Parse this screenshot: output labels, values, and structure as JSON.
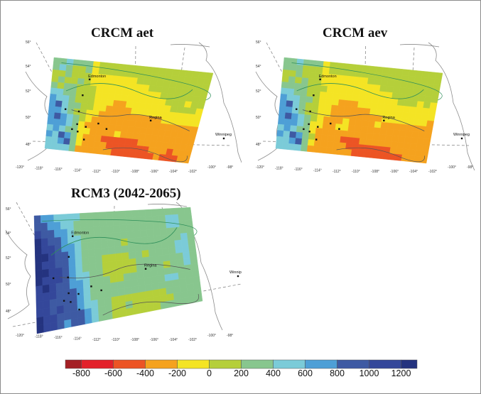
{
  "chart_data": {
    "type": "heatmap",
    "colorbar": {
      "orientation": "horizontal",
      "placement": "bottom",
      "boundaries": [
        -900,
        -800,
        -600,
        -400,
        -200,
        0,
        200,
        400,
        600,
        800,
        1000,
        1200,
        1300
      ],
      "tick_labels": [
        "-800",
        "-600",
        "-400",
        "-200",
        "0",
        "200",
        "400",
        "600",
        "800",
        "1000",
        "1200"
      ],
      "colors": [
        "#a41f24",
        "#e3202a",
        "#ec5424",
        "#f5a21e",
        "#f4e424",
        "#b5cf3a",
        "#88c68e",
        "#7bcbd8",
        "#4e9fd6",
        "#3e5aa3",
        "#34479a",
        "#24337f"
      ]
    },
    "lat_ticks": [
      "56°",
      "54°",
      "52°",
      "50°",
      "48°"
    ],
    "lon_ticks": [
      "-120°",
      "-118°",
      "-116°",
      "-114°",
      "-112°",
      "-110°",
      "-108°",
      "-106°",
      "-104°",
      "-102°",
      "-100°",
      "-98°"
    ],
    "place_labels": [
      "Edmonton",
      "Regina",
      "Winnipeg"
    ],
    "panels": [
      {
        "title": "CRCM aet",
        "note": "values are colorbar class indices (0=-900..-800 ... 11=1200..1300), west→east columns, north→south rows",
        "grid": [
          [
            6,
            6,
            7,
            6,
            6,
            6,
            4,
            5,
            5,
            5,
            5,
            5,
            5,
            5,
            5,
            5,
            5,
            5,
            5,
            5,
            5,
            5,
            5,
            5
          ],
          [
            6,
            7,
            6,
            5,
            5,
            6,
            4,
            5,
            5,
            5,
            5,
            5,
            5,
            5,
            5,
            5,
            5,
            5,
            5,
            5,
            5,
            5,
            5,
            5
          ],
          [
            5,
            5,
            6,
            5,
            5,
            5,
            4,
            4,
            4,
            4,
            4,
            4,
            4,
            5,
            5,
            5,
            5,
            5,
            5,
            5,
            5,
            5,
            5,
            5
          ],
          [
            5,
            6,
            5,
            5,
            6,
            5,
            4,
            4,
            4,
            4,
            4,
            4,
            4,
            4,
            4,
            5,
            5,
            5,
            5,
            5,
            5,
            5,
            5,
            5
          ],
          [
            6,
            5,
            6,
            6,
            5,
            5,
            5,
            4,
            4,
            4,
            4,
            4,
            4,
            4,
            4,
            4,
            4,
            5,
            5,
            5,
            5,
            5,
            5,
            5
          ],
          [
            7,
            7,
            6,
            6,
            5,
            5,
            5,
            4,
            4,
            4,
            4,
            4,
            4,
            4,
            4,
            4,
            4,
            4,
            5,
            5,
            5,
            4,
            5,
            5
          ],
          [
            8,
            7,
            7,
            6,
            5,
            5,
            5,
            4,
            4,
            4,
            3,
            3,
            4,
            4,
            4,
            4,
            4,
            4,
            4,
            5,
            5,
            5,
            5,
            4
          ],
          [
            8,
            9,
            7,
            6,
            6,
            5,
            5,
            4,
            4,
            3,
            3,
            3,
            3,
            4,
            4,
            4,
            4,
            4,
            4,
            4,
            4,
            4,
            4,
            4
          ],
          [
            8,
            8,
            7,
            6,
            5,
            5,
            4,
            4,
            3,
            3,
            3,
            3,
            3,
            3,
            3,
            3,
            3,
            3,
            4,
            4,
            4,
            4,
            4,
            4
          ],
          [
            8,
            9,
            8,
            7,
            6,
            5,
            4,
            3,
            3,
            3,
            3,
            3,
            3,
            3,
            3,
            3,
            3,
            3,
            3,
            3,
            3,
            3,
            3,
            3
          ],
          [
            8,
            8,
            8,
            7,
            6,
            4,
            3,
            3,
            3,
            3,
            3,
            3,
            3,
            3,
            3,
            3,
            3,
            3,
            3,
            3,
            3,
            3,
            3,
            3
          ],
          [
            7,
            8,
            7,
            6,
            6,
            4,
            4,
            3,
            3,
            3,
            3,
            4,
            3,
            3,
            3,
            3,
            3,
            3,
            3,
            3,
            3,
            3,
            3,
            3
          ],
          [
            8,
            7,
            9,
            8,
            6,
            4,
            3,
            3,
            3,
            2,
            2,
            2,
            2,
            2,
            2,
            3,
            3,
            3,
            3,
            3,
            3,
            3,
            3,
            3
          ],
          [
            7,
            7,
            8,
            9,
            6,
            4,
            3,
            3,
            3,
            3,
            2,
            2,
            2,
            2,
            2,
            2,
            2,
            3,
            3,
            3,
            2,
            3,
            3,
            3
          ],
          [
            7,
            7,
            7,
            7,
            6,
            3,
            3,
            3,
            3,
            3,
            3,
            2,
            2,
            2,
            2,
            2,
            2,
            2,
            3,
            2,
            2,
            2,
            3,
            3
          ]
        ]
      },
      {
        "title": "CRCM aev",
        "grid": [
          [
            6,
            6,
            7,
            6,
            6,
            6,
            4,
            5,
            5,
            5,
            5,
            5,
            5,
            5,
            5,
            5,
            5,
            5,
            5,
            5,
            5,
            5,
            5,
            5
          ],
          [
            6,
            6,
            6,
            5,
            5,
            5,
            4,
            5,
            5,
            5,
            5,
            5,
            5,
            5,
            5,
            5,
            5,
            5,
            5,
            5,
            5,
            5,
            5,
            5
          ],
          [
            5,
            5,
            6,
            5,
            5,
            5,
            4,
            4,
            4,
            4,
            4,
            4,
            4,
            5,
            5,
            5,
            5,
            5,
            5,
            5,
            5,
            5,
            5,
            5
          ],
          [
            5,
            6,
            5,
            6,
            5,
            5,
            4,
            4,
            4,
            4,
            4,
            4,
            4,
            4,
            4,
            5,
            5,
            5,
            5,
            5,
            5,
            5,
            5,
            5
          ],
          [
            6,
            6,
            6,
            6,
            5,
            5,
            5,
            4,
            4,
            4,
            4,
            4,
            4,
            4,
            4,
            4,
            4,
            5,
            5,
            5,
            5,
            5,
            5,
            5
          ],
          [
            7,
            7,
            6,
            6,
            5,
            5,
            4,
            4,
            4,
            4,
            4,
            4,
            4,
            4,
            4,
            4,
            4,
            4,
            5,
            5,
            5,
            4,
            5,
            4
          ],
          [
            8,
            7,
            7,
            6,
            6,
            5,
            4,
            4,
            4,
            3,
            3,
            3,
            4,
            4,
            4,
            4,
            4,
            4,
            4,
            4,
            4,
            4,
            4,
            4
          ],
          [
            8,
            9,
            7,
            6,
            5,
            5,
            4,
            4,
            3,
            3,
            3,
            3,
            3,
            3,
            4,
            4,
            4,
            4,
            4,
            4,
            4,
            4,
            4,
            4
          ],
          [
            8,
            8,
            7,
            6,
            5,
            5,
            4,
            4,
            3,
            3,
            3,
            3,
            3,
            3,
            3,
            3,
            4,
            4,
            4,
            4,
            4,
            4,
            4,
            3
          ],
          [
            8,
            9,
            8,
            7,
            6,
            5,
            4,
            3,
            3,
            3,
            4,
            3,
            3,
            3,
            3,
            4,
            3,
            3,
            3,
            3,
            3,
            3,
            3,
            3
          ],
          [
            8,
            8,
            8,
            7,
            6,
            4,
            4,
            3,
            3,
            4,
            4,
            3,
            3,
            3,
            3,
            3,
            3,
            3,
            3,
            3,
            3,
            3,
            3,
            3
          ],
          [
            7,
            8,
            7,
            6,
            6,
            4,
            3,
            3,
            3,
            3,
            3,
            3,
            3,
            3,
            3,
            3,
            3,
            3,
            3,
            3,
            3,
            3,
            3,
            3
          ],
          [
            8,
            7,
            9,
            8,
            6,
            5,
            3,
            3,
            3,
            3,
            2,
            2,
            2,
            3,
            3,
            3,
            3,
            3,
            3,
            3,
            3,
            3,
            3,
            3
          ],
          [
            7,
            7,
            8,
            9,
            6,
            4,
            3,
            3,
            3,
            3,
            3,
            2,
            2,
            2,
            2,
            2,
            2,
            2,
            3,
            3,
            3,
            3,
            3,
            3
          ],
          [
            7,
            7,
            7,
            7,
            6,
            3,
            3,
            3,
            3,
            3,
            3,
            3,
            2,
            2,
            2,
            2,
            2,
            2,
            2,
            2,
            3,
            3,
            3,
            3
          ]
        ]
      },
      {
        "title": "RCM3 (2042-2065)",
        "grid": [
          [
            9,
            8,
            8,
            7,
            7,
            7,
            7,
            6,
            6,
            6,
            6,
            6,
            6,
            6,
            6,
            6,
            6,
            6,
            6,
            6,
            6,
            6,
            6,
            6
          ],
          [
            9,
            9,
            8,
            8,
            7,
            7,
            6,
            6,
            6,
            6,
            6,
            6,
            6,
            6,
            6,
            6,
            6,
            6,
            6,
            6,
            7,
            7,
            6,
            6
          ],
          [
            10,
            9,
            9,
            8,
            8,
            7,
            6,
            6,
            6,
            6,
            6,
            6,
            6,
            6,
            6,
            6,
            6,
            6,
            6,
            6,
            7,
            7,
            6,
            6
          ],
          [
            11,
            10,
            9,
            9,
            8,
            7,
            7,
            6,
            6,
            6,
            6,
            6,
            6,
            6,
            6,
            6,
            6,
            6,
            6,
            6,
            6,
            6,
            6,
            6
          ],
          [
            11,
            10,
            10,
            9,
            8,
            8,
            7,
            6,
            6,
            6,
            6,
            6,
            6,
            5,
            6,
            6,
            6,
            6,
            6,
            6,
            6,
            6,
            7,
            6
          ],
          [
            11,
            11,
            10,
            9,
            9,
            8,
            7,
            6,
            6,
            6,
            6,
            6,
            6,
            6,
            6,
            6,
            6,
            6,
            6,
            6,
            6,
            7,
            7,
            6
          ],
          [
            11,
            10,
            10,
            9,
            9,
            8,
            7,
            6,
            6,
            6,
            5,
            5,
            5,
            5,
            6,
            6,
            5,
            6,
            6,
            6,
            6,
            7,
            7,
            6
          ],
          [
            11,
            11,
            10,
            10,
            9,
            8,
            7,
            6,
            6,
            6,
            5,
            5,
            5,
            5,
            5,
            6,
            6,
            6,
            6,
            6,
            6,
            6,
            7,
            6
          ],
          [
            11,
            10,
            10,
            10,
            9,
            8,
            7,
            7,
            6,
            6,
            5,
            5,
            5,
            5,
            5,
            6,
            6,
            6,
            6,
            5,
            6,
            6,
            7,
            6
          ],
          [
            10,
            11,
            10,
            9,
            9,
            8,
            8,
            7,
            6,
            6,
            6,
            5,
            5,
            6,
            6,
            6,
            6,
            6,
            6,
            6,
            6,
            6,
            6,
            6
          ],
          [
            10,
            10,
            10,
            9,
            9,
            9,
            8,
            7,
            6,
            6,
            6,
            6,
            6,
            6,
            6,
            6,
            6,
            6,
            6,
            7,
            7,
            6,
            6,
            6
          ],
          [
            10,
            10,
            9,
            9,
            9,
            9,
            8,
            7,
            6,
            6,
            6,
            6,
            6,
            6,
            6,
            6,
            6,
            6,
            6,
            6,
            6,
            6,
            6,
            6
          ],
          [
            10,
            10,
            9,
            10,
            9,
            9,
            8,
            7,
            7,
            6,
            6,
            5,
            5,
            5,
            5,
            5,
            5,
            5,
            5,
            6,
            6,
            6,
            6,
            6
          ],
          [
            11,
            10,
            10,
            9,
            9,
            9,
            9,
            8,
            7,
            6,
            6,
            5,
            5,
            6,
            5,
            5,
            5,
            5,
            5,
            5,
            6,
            6,
            6,
            6
          ],
          [
            11,
            10,
            10,
            9,
            8,
            9,
            9,
            8,
            7,
            6,
            6,
            5,
            5,
            5,
            5,
            5,
            5,
            5,
            6,
            6,
            6,
            6,
            6,
            6
          ]
        ]
      }
    ]
  }
}
